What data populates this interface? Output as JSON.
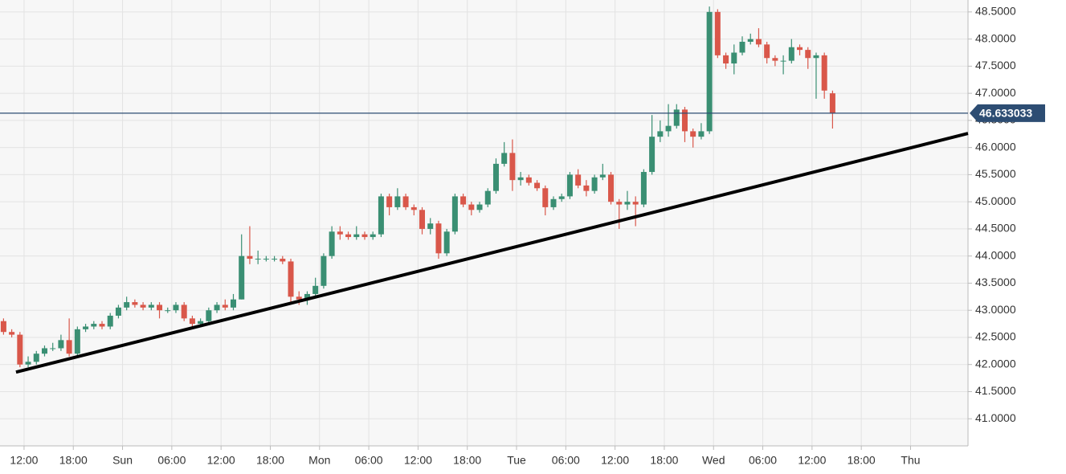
{
  "chart_data": {
    "type": "candlestick",
    "x": [
      9.5,
      10.5,
      11.5,
      12.5,
      13.5,
      14.5,
      15.5,
      16.5,
      17.5,
      18.5,
      19.5,
      20.5,
      21.5,
      22.5,
      23.5,
      24.5,
      25.5,
      26.5,
      27.5,
      28.5,
      29.5,
      30.5,
      31.5,
      32.5,
      33.5,
      34.5,
      35.5,
      36.5,
      37.5,
      38.5,
      39.5,
      40.5,
      41.5,
      42.5,
      43.5,
      44.5,
      45.5,
      46.5,
      47.5,
      48.5,
      49.5,
      50.5,
      51.5,
      52.5,
      53.5,
      54.5,
      55.5,
      56.5,
      57.5,
      58.5,
      59.5,
      60.5,
      61.5,
      62.5,
      63.5,
      64.5,
      65.5,
      66.5,
      67.5,
      68.5,
      69.5,
      70.5,
      71.5,
      72.5,
      73.5,
      74.5,
      75.5,
      76.5,
      77.5,
      78.5,
      79.5,
      80.5,
      81.5,
      82.5,
      83.5,
      84.5,
      85.5,
      86.5,
      87.5,
      88.5,
      89.5,
      90.5,
      91.5,
      92.5,
      93.5,
      94.5,
      95.5,
      96.5,
      97.5,
      98.5,
      99.5,
      100.5,
      101.5,
      102.5,
      103.5,
      104.5,
      105.5,
      106.5,
      107.5,
      108.5,
      109.5,
      110.5
    ],
    "open": [
      42.8,
      42.6,
      42.55,
      42.0,
      42.05,
      42.2,
      42.3,
      42.3,
      42.45,
      42.2,
      42.65,
      42.7,
      42.75,
      42.7,
      42.9,
      43.05,
      43.15,
      43.1,
      43.05,
      43.1,
      43.0,
      43.0,
      43.1,
      42.85,
      42.75,
      42.8,
      43.0,
      43.1,
      43.05,
      43.2,
      44.0,
      43.95,
      43.95,
      43.95,
      43.95,
      43.9,
      43.25,
      43.2,
      43.3,
      43.45,
      44.0,
      44.45,
      44.4,
      44.35,
      44.4,
      44.35,
      44.4,
      45.1,
      44.9,
      45.1,
      44.9,
      44.85,
      44.5,
      44.6,
      44.05,
      44.45,
      45.1,
      44.95,
      44.85,
      44.95,
      45.2,
      45.7,
      45.9,
      45.4,
      45.45,
      45.35,
      45.25,
      44.9,
      45.05,
      45.1,
      45.5,
      45.3,
      45.2,
      45.45,
      45.5,
      45.0,
      44.95,
      45.0,
      44.95,
      45.55,
      46.2,
      46.3,
      46.4,
      46.7,
      46.3,
      46.2,
      46.3,
      48.5,
      47.7,
      47.55,
      47.75,
      47.95,
      48.0,
      47.9,
      47.65,
      47.6,
      47.6,
      47.85,
      47.8,
      47.65,
      47.7,
      47.0
    ],
    "high": [
      42.85,
      42.65,
      42.6,
      42.15,
      42.25,
      42.35,
      42.4,
      42.55,
      42.85,
      42.7,
      42.75,
      42.8,
      42.8,
      42.95,
      43.1,
      43.25,
      43.2,
      43.15,
      43.15,
      43.15,
      43.05,
      43.15,
      43.15,
      42.9,
      42.85,
      43.05,
      43.15,
      43.2,
      43.3,
      44.4,
      44.55,
      44.1,
      44.0,
      44.0,
      44.0,
      43.95,
      43.35,
      43.35,
      43.6,
      44.05,
      44.55,
      44.55,
      44.45,
      44.55,
      44.45,
      44.45,
      45.15,
      45.15,
      45.25,
      45.15,
      44.95,
      44.9,
      44.7,
      44.65,
      44.5,
      45.15,
      45.15,
      45.0,
      45.0,
      45.25,
      45.8,
      46.1,
      46.15,
      45.55,
      45.5,
      45.4,
      45.3,
      45.1,
      45.15,
      45.55,
      45.6,
      45.4,
      45.5,
      45.7,
      45.55,
      45.05,
      45.2,
      45.1,
      45.6,
      46.6,
      46.5,
      46.8,
      46.8,
      46.75,
      46.35,
      46.45,
      48.6,
      48.55,
      47.75,
      47.9,
      48.05,
      48.1,
      48.2,
      47.95,
      47.7,
      47.7,
      48.0,
      47.9,
      47.85,
      47.75,
      47.75,
      47.05
    ],
    "low": [
      42.55,
      42.5,
      41.95,
      41.95,
      42.0,
      42.15,
      42.25,
      42.25,
      42.15,
      42.15,
      42.6,
      42.65,
      42.65,
      42.65,
      42.85,
      43.0,
      43.05,
      43.0,
      43.0,
      42.85,
      42.95,
      42.95,
      42.8,
      42.7,
      42.7,
      42.75,
      42.95,
      43.0,
      43.0,
      43.2,
      43.85,
      43.85,
      43.9,
      43.9,
      43.85,
      43.15,
      43.1,
      43.1,
      43.25,
      43.4,
      43.95,
      44.3,
      44.3,
      44.3,
      44.3,
      44.3,
      44.35,
      44.75,
      44.85,
      44.85,
      44.75,
      44.4,
      44.4,
      43.95,
      44.0,
      44.4,
      44.9,
      44.75,
      44.8,
      44.9,
      45.15,
      45.65,
      45.2,
      45.3,
      45.3,
      45.2,
      44.75,
      44.85,
      45.0,
      45.05,
      45.25,
      45.1,
      45.15,
      45.4,
      44.95,
      44.5,
      44.85,
      44.55,
      44.9,
      45.5,
      46.1,
      46.2,
      46.35,
      46.1,
      46.0,
      46.15,
      46.25,
      47.65,
      47.45,
      47.35,
      47.7,
      47.9,
      47.85,
      47.55,
      47.5,
      47.35,
      47.55,
      47.7,
      47.45,
      46.9,
      46.9,
      46.35
    ],
    "close": [
      42.6,
      42.55,
      42.0,
      42.05,
      42.2,
      42.3,
      42.3,
      42.45,
      42.2,
      42.65,
      42.7,
      42.75,
      42.7,
      42.9,
      43.05,
      43.15,
      43.1,
      43.05,
      43.1,
      43.0,
      43.0,
      43.1,
      42.85,
      42.75,
      42.8,
      43.0,
      43.1,
      43.05,
      43.2,
      44.0,
      43.95,
      43.95,
      43.95,
      43.95,
      43.9,
      43.25,
      43.2,
      43.3,
      43.45,
      44.0,
      44.45,
      44.4,
      44.35,
      44.4,
      44.35,
      44.4,
      45.1,
      44.9,
      45.1,
      44.9,
      44.85,
      44.5,
      44.6,
      44.05,
      44.45,
      45.1,
      44.95,
      44.85,
      44.95,
      45.2,
      45.7,
      45.9,
      45.4,
      45.45,
      45.35,
      45.25,
      44.9,
      45.05,
      45.1,
      45.5,
      45.3,
      45.2,
      45.45,
      45.5,
      45.0,
      44.95,
      45.0,
      44.95,
      45.55,
      46.2,
      46.3,
      46.4,
      46.7,
      46.3,
      46.2,
      46.3,
      48.5,
      47.7,
      47.55,
      47.75,
      47.95,
      48.0,
      47.9,
      47.65,
      47.6,
      47.6,
      47.85,
      47.8,
      47.65,
      47.7,
      47.05,
      46.633033
    ],
    "up_color": "#3a8f73",
    "down_color": "#d9574a",
    "last_price": 46.633033,
    "last_price_color": "#2d4d73",
    "trendline": {
      "x": [
        11.02,
        127
      ],
      "y": [
        41.86,
        46.26
      ],
      "color": "#000000"
    },
    "xlim": [
      9.07,
      127
    ],
    "xticks": [
      {
        "value": 12,
        "label": "12:00"
      },
      {
        "value": 18,
        "label": "18:00"
      },
      {
        "value": 24,
        "label": "Sun"
      },
      {
        "value": 30,
        "label": "06:00"
      },
      {
        "value": 36,
        "label": "12:00"
      },
      {
        "value": 42,
        "label": "18:00"
      },
      {
        "value": 48,
        "label": "Mon"
      },
      {
        "value": 54,
        "label": "06:00"
      },
      {
        "value": 60,
        "label": "12:00"
      },
      {
        "value": 66,
        "label": "18:00"
      },
      {
        "value": 72,
        "label": "Tue"
      },
      {
        "value": 78,
        "label": "06:00"
      },
      {
        "value": 84,
        "label": "12:00"
      },
      {
        "value": 90,
        "label": "18:00"
      },
      {
        "value": 96,
        "label": "Wed"
      },
      {
        "value": 102,
        "label": "06:00"
      },
      {
        "value": 108,
        "label": "12:00"
      },
      {
        "value": 114,
        "label": "18:00"
      },
      {
        "value": 120,
        "label": "Thu"
      }
    ],
    "ylim": [
      40.5,
      48.72
    ],
    "yticks": [
      {
        "value": 41,
        "label": "41.0000"
      },
      {
        "value": 41.5,
        "label": "41.5000"
      },
      {
        "value": 42,
        "label": "42.0000"
      },
      {
        "value": 42.5,
        "label": "42.5000"
      },
      {
        "value": 43,
        "label": "43.0000"
      },
      {
        "value": 43.5,
        "label": "43.5000"
      },
      {
        "value": 44,
        "label": "44.0000"
      },
      {
        "value": 44.5,
        "label": "44.5000"
      },
      {
        "value": 45,
        "label": "45.0000"
      },
      {
        "value": 45.5,
        "label": "45.5000"
      },
      {
        "value": 46,
        "label": "46.0000"
      },
      {
        "value": 46.5,
        "label": "46.5000"
      },
      {
        "value": 47,
        "label": "47.0000"
      },
      {
        "value": 47.5,
        "label": "47.5000"
      },
      {
        "value": 48,
        "label": "48.0000"
      },
      {
        "value": 48.5,
        "label": "48.5000"
      }
    ],
    "grid": true
  }
}
